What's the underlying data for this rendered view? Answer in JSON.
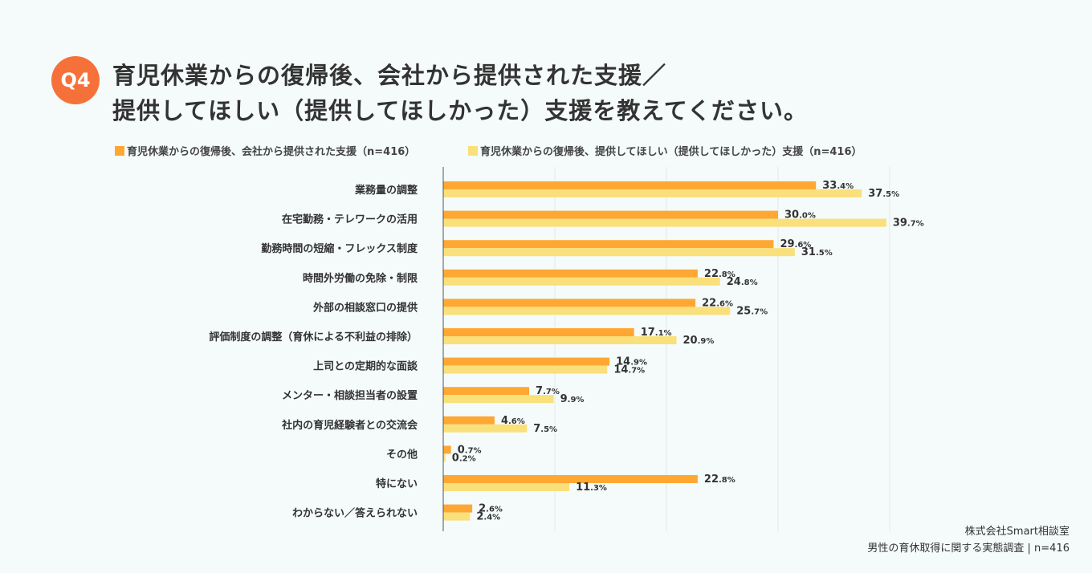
{
  "header": {
    "badge": "Q4",
    "title_line1": "育児休業からの復帰後、会社から提供された支援／",
    "title_line2": "提供してほしい（提供してほしかった）支援を教えてください。"
  },
  "source": {
    "company": "株式会社Smart相談室",
    "survey": "男性の育休取得に関する実態調査 | n=416"
  },
  "chart_data": {
    "type": "bar",
    "orientation": "horizontal",
    "xlim": [
      0,
      40
    ],
    "grid": true,
    "gridlines": [
      10,
      20,
      30,
      40
    ],
    "legend_position": "top",
    "categories": [
      "業務量の調整",
      "在宅勤務・テレワークの活用",
      "勤務時間の短縮・フレックス制度",
      "時間外労働の免除・制限",
      "外部の相談窓口の提供",
      "評価制度の調整（育休による不利益の排除）",
      "上司との定期的な面談",
      "メンター・相談担当者の設置",
      "社内の育児経験者との交流会",
      "その他",
      "特にない",
      "わからない／答えられない"
    ],
    "series": [
      {
        "name": "育児休業からの復帰後、会社から提供された支援（n=416）",
        "color": "#ffa733",
        "values": [
          33.4,
          30.0,
          29.6,
          22.8,
          22.6,
          17.1,
          14.9,
          7.7,
          4.6,
          0.7,
          22.8,
          2.6
        ]
      },
      {
        "name": "育児休業からの復帰後、提供してほしい（提供してほしかった）支援（n=416）",
        "color": "#f9e07a",
        "values": [
          37.5,
          39.7,
          31.5,
          24.8,
          25.7,
          20.9,
          14.7,
          9.9,
          7.5,
          0.2,
          11.3,
          2.4
        ]
      }
    ],
    "value_suffix": "%"
  }
}
